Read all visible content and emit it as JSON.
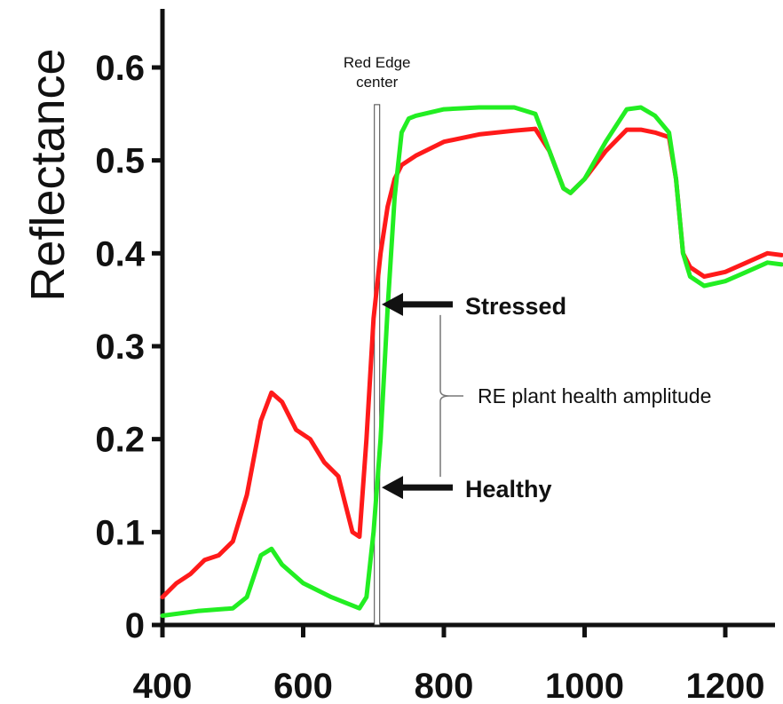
{
  "chart_data": {
    "type": "line",
    "title": "",
    "xlabel": "",
    "ylabel": "Reflectance",
    "xlim": [
      400,
      1280
    ],
    "ylim": [
      0,
      0.65
    ],
    "x_ticks": [
      400,
      600,
      800,
      1000,
      1200
    ],
    "y_ticks": [
      0,
      0.1,
      0.2,
      0.3,
      0.4,
      0.5,
      0.6
    ],
    "x_tick_labels": [
      "400",
      "600",
      "800",
      "1000",
      "1200"
    ],
    "y_tick_labels": [
      "0",
      "0.1",
      "0.2",
      "0.3",
      "0.4",
      "0.5",
      "0.6"
    ],
    "grid": false,
    "series": [
      {
        "color": "#ff1a1a",
        "x": [
          400,
          420,
          440,
          460,
          480,
          500,
          520,
          540,
          555,
          570,
          590,
          610,
          630,
          650,
          660,
          670,
          680,
          690,
          700,
          710,
          720,
          730,
          740,
          760,
          800,
          850,
          900,
          930,
          950,
          970,
          980,
          1000,
          1030,
          1060,
          1080,
          1100,
          1120,
          1130,
          1140,
          1150,
          1170,
          1200,
          1230,
          1260,
          1280
        ],
        "y": [
          0.03,
          0.045,
          0.055,
          0.07,
          0.075,
          0.09,
          0.14,
          0.22,
          0.25,
          0.24,
          0.21,
          0.2,
          0.175,
          0.16,
          0.13,
          0.1,
          0.095,
          0.2,
          0.33,
          0.4,
          0.45,
          0.48,
          0.495,
          0.505,
          0.52,
          0.528,
          0.532,
          0.534,
          0.51,
          0.47,
          0.465,
          0.48,
          0.51,
          0.533,
          0.533,
          0.53,
          0.525,
          0.48,
          0.4,
          0.385,
          0.375,
          0.38,
          0.39,
          0.4,
          0.398
        ]
      },
      {
        "color": "#22ee22",
        "x": [
          400,
          450,
          500,
          520,
          540,
          555,
          570,
          600,
          640,
          680,
          690,
          700,
          710,
          720,
          730,
          740,
          750,
          760,
          800,
          850,
          900,
          930,
          950,
          970,
          980,
          1000,
          1030,
          1060,
          1080,
          1100,
          1120,
          1130,
          1140,
          1150,
          1170,
          1200,
          1230,
          1260,
          1280
        ],
        "y": [
          0.01,
          0.015,
          0.018,
          0.03,
          0.075,
          0.082,
          0.065,
          0.045,
          0.03,
          0.018,
          0.03,
          0.1,
          0.2,
          0.34,
          0.46,
          0.53,
          0.545,
          0.548,
          0.555,
          0.557,
          0.557,
          0.55,
          0.51,
          0.47,
          0.465,
          0.48,
          0.52,
          0.555,
          0.557,
          0.548,
          0.53,
          0.48,
          0.4,
          0.375,
          0.365,
          0.37,
          0.38,
          0.39,
          0.388
        ]
      }
    ],
    "red_edge_line_x": 705,
    "annotations": {
      "red_edge_label": [
        "Red Edge",
        "center"
      ],
      "stressed_label": "Stressed",
      "stressed_y": 0.345,
      "healthy_label": "Healthy",
      "healthy_y": 0.148,
      "amplitude_label": "RE plant health amplitude"
    }
  }
}
